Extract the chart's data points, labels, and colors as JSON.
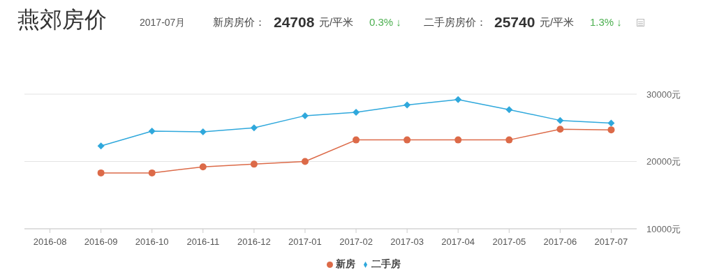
{
  "chart_data": {
    "type": "line",
    "title": "燕郊房价",
    "annotations": [
      "2017-07月",
      "新房房价：",
      "24708",
      "元/平米",
      "0.3% ↓",
      "二手房房价：",
      "25740",
      "元/平米",
      "1.3% ↓"
    ],
    "categories": [
      "2016-08",
      "2016-09",
      "2016-10",
      "2016-11",
      "2016-12",
      "2017-01",
      "2017-02",
      "2017-03",
      "2017-04",
      "2017-05",
      "2017-06",
      "2017-07"
    ],
    "series": [
      {
        "name": "新房",
        "color": "#dc6a48",
        "marker": "circle",
        "values": [
          null,
          18300,
          18300,
          19200,
          19600,
          20000,
          23200,
          23200,
          23200,
          23200,
          24800,
          24700
        ]
      },
      {
        "name": "二手房",
        "color": "#2fa8dc",
        "marker": "diamond",
        "values": [
          null,
          22300,
          24500,
          24400,
          25000,
          26800,
          27300,
          28400,
          29200,
          27700,
          26100,
          25700
        ]
      }
    ],
    "ylim": [
      10000,
      30000
    ],
    "yticks": [
      {
        "value": 10000,
        "label": "10000元"
      },
      {
        "value": 20000,
        "label": "20000元"
      },
      {
        "value": 30000,
        "label": "30000元"
      }
    ],
    "grid": "y",
    "legend": "bottom",
    "line_style": "solid"
  }
}
